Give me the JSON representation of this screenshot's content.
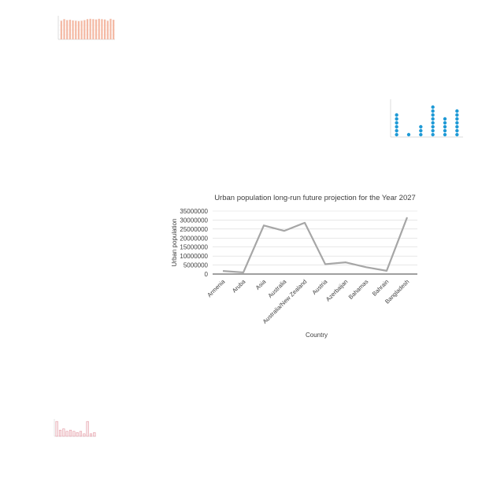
{
  "chart_data": [
    {
      "type": "line",
      "title": "Urban population long-run future projection for the Year 2027",
      "xlabel": "Country",
      "ylabel": "Urban population",
      "categories": [
        "Armenia",
        "Aruba",
        "Asia",
        "Australia",
        "Australia/New Zealand",
        "Austria",
        "Azerbaijan",
        "Bahamas",
        "Bahrain",
        "Bangladesh"
      ],
      "series": [
        {
          "values": [
            1700000,
            900000,
            27000000,
            24000000,
            28500000,
            5500000,
            6500000,
            3800000,
            1800000,
            31500000
          ]
        }
      ],
      "yticks": [
        "0",
        "5000000",
        "10000000",
        "15000000",
        "20000000",
        "25000000",
        "30000000",
        "35000000"
      ],
      "ylim": [
        0,
        35000000
      ],
      "grid": true,
      "line_color": "#a6a6a6"
    },
    {
      "type": "bar",
      "title": "",
      "series": [
        {
          "values": [
            55,
            60,
            57,
            58,
            56,
            55,
            54,
            55,
            57,
            60,
            61,
            60,
            59,
            61,
            60,
            59,
            55,
            61,
            58
          ]
        }
      ],
      "ylim": [
        0,
        70
      ],
      "bar_color": "#f4b9a4",
      "grid": true
    },
    {
      "type": "scatter",
      "title": "",
      "categories": [
        "",
        "",
        "",
        "",
        "",
        ""
      ],
      "series": [
        {
          "values": [
            6,
            1,
            3,
            8,
            5,
            7
          ]
        }
      ],
      "ylim": [
        0,
        10
      ],
      "dot_color": "#1f9ad6"
    },
    {
      "type": "bar",
      "title": "",
      "series": [
        {
          "values": [
            12,
            5,
            6,
            4,
            5,
            4,
            3,
            4,
            2,
            12,
            2,
            3
          ]
        }
      ],
      "ylim": [
        0,
        14
      ],
      "bar_color": "#f8e8ea",
      "edge_color": "#e08a96"
    }
  ]
}
